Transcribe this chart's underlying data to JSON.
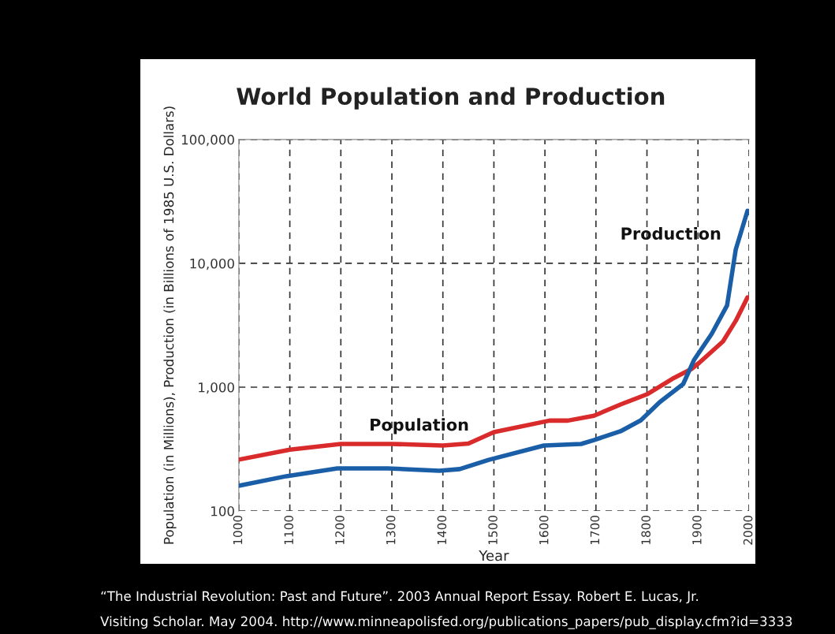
{
  "chart_data": {
    "type": "line",
    "title": "World Population and Production",
    "xlabel": "Year",
    "ylabel": "Population (in Millions), Production (in Billions of 1985 U.S. Dollars)",
    "log": "y",
    "xlim": [
      1000,
      2000
    ],
    "xticks": [
      1000,
      1100,
      1200,
      1300,
      1400,
      1500,
      1600,
      1700,
      1800,
      1900,
      2000
    ],
    "ylim": [
      100,
      100000
    ],
    "yticks": [
      {
        "value": 100,
        "label": "100"
      },
      {
        "value": 1000,
        "label": "1,000"
      },
      {
        "value": 10000,
        "label": "10,000"
      },
      {
        "value": 100000,
        "label": "100,000"
      }
    ],
    "grid": true,
    "line_style": "solid",
    "marker": "none",
    "series": [
      {
        "name": "Population",
        "color": "#d92b2b",
        "x": [
          1000,
          1100,
          1200,
          1300,
          1400,
          1450,
          1500,
          1609,
          1645,
          1696,
          1748,
          1800,
          1850,
          1887,
          1903,
          1949,
          1974,
          1997
        ],
        "values": [
          260,
          313,
          348,
          348,
          338,
          350,
          433,
          537,
          537,
          588,
          724,
          876,
          1170,
          1400,
          1580,
          2340,
          3430,
          5300
        ]
      },
      {
        "name": "Production",
        "color": "#1a5ea8",
        "x": [
          1000,
          1093,
          1193,
          1292,
          1393,
          1433,
          1490,
          1598,
          1671,
          1696,
          1748,
          1788,
          1825,
          1871,
          1892,
          1927,
          1957,
          1974,
          1997
        ],
        "values": [
          160,
          191,
          221,
          221,
          211,
          218,
          259,
          338,
          348,
          374,
          440,
          540,
          757,
          1060,
          1650,
          2700,
          4570,
          12900,
          26500
        ]
      }
    ],
    "annotations": [
      "“The Industrial Revolution: Past and Future”. 2003 Annual Report Essay. Robert E. Lucas, Jr.",
      "Visiting Scholar. May 2004. http://www.minneapolisfed.org/publications_papers/pub_display.cfm?id=3333"
    ]
  }
}
